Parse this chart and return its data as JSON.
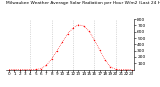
{
  "title": "Milwaukee Weather Average Solar Radiation per Hour W/m2 (Last 24 Hours)",
  "hours": [
    0,
    1,
    2,
    3,
    4,
    5,
    6,
    7,
    8,
    9,
    10,
    11,
    12,
    13,
    14,
    15,
    16,
    17,
    18,
    19,
    20,
    21,
    22,
    23
  ],
  "values": [
    0,
    0,
    0,
    0,
    0,
    2,
    15,
    70,
    170,
    300,
    440,
    570,
    660,
    710,
    690,
    610,
    470,
    310,
    150,
    45,
    3,
    0,
    0,
    0
  ],
  "line_color": "#ff0000",
  "bg_color": "#ffffff",
  "plot_bg": "#ffffff",
  "grid_color": "#bbbbbb",
  "ylim": [
    0,
    800
  ],
  "yticks": [
    100,
    200,
    300,
    400,
    500,
    600,
    700,
    800
  ],
  "ylabel_fontsize": 3.2,
  "xlabel_fontsize": 3.0,
  "title_fontsize": 3.2,
  "grid_hours": [
    4,
    8,
    12,
    16,
    20
  ]
}
